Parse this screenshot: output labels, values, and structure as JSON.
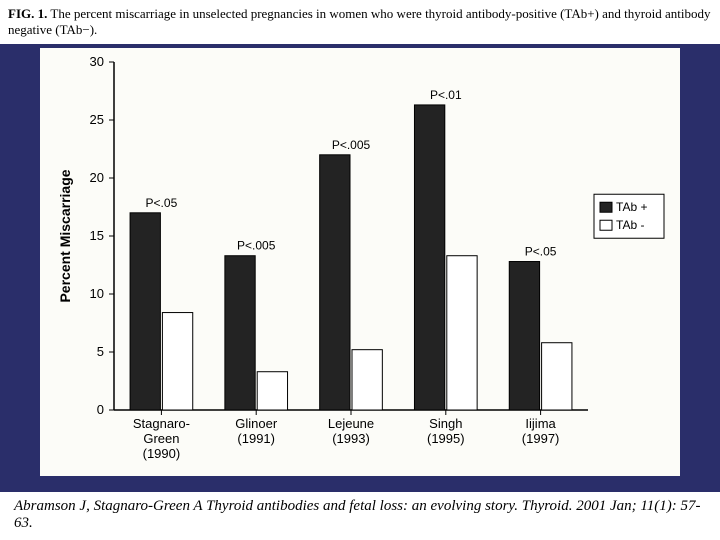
{
  "caption": {
    "label": "FIG. 1.",
    "text": "The percent miscarriage in unselected pregnancies in women who were thyroid antibody-positive (TAb+) and thyroid antibody negative (TAb−)."
  },
  "chart": {
    "type": "bar",
    "ylabel": "Percent Miscarriage",
    "ylim": [
      0,
      30
    ],
    "ytick_step": 5,
    "background_color": "#fcfcf8",
    "axis_color": "#000000",
    "grid_color": "#999999",
    "categories": [
      {
        "line1": "Stagnaro-",
        "line2": "Green",
        "line3": "(1990)"
      },
      {
        "line1": "Glinoer",
        "line2": "(1991)",
        "line3": ""
      },
      {
        "line1": "Lejeune",
        "line2": "(1993)",
        "line3": ""
      },
      {
        "line1": "Singh",
        "line2": "(1995)",
        "line3": ""
      },
      {
        "line1": "Iijima",
        "line2": "(1997)",
        "line3": ""
      }
    ],
    "series": [
      {
        "name": "TAb +",
        "color": "#232323",
        "values": [
          17.0,
          13.3,
          22.0,
          26.3,
          12.8
        ]
      },
      {
        "name": "TAb -",
        "color": "#ffffff",
        "values": [
          8.4,
          3.3,
          5.2,
          13.3,
          5.8
        ]
      }
    ],
    "bar_border": "#000000",
    "pvalues": [
      "P<.05",
      "P<.005",
      "P<.005",
      "P<.01",
      "P<.05"
    ],
    "bar_width": 0.32,
    "legend": {
      "frame_color": "#000000",
      "background": "#ffffff"
    }
  },
  "citation": "Abramson J, Stagnaro-Green A Thyroid antibodies and fetal loss: an evolving story. Thyroid. 2001 Jan; 11(1): 57-63."
}
